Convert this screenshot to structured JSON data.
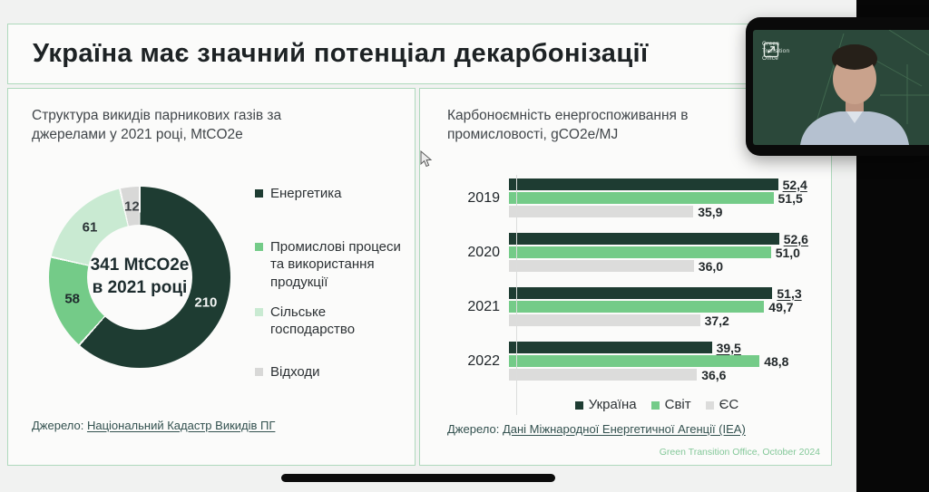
{
  "slide": {
    "title": "Україна має значний потенціал декарбонізації",
    "footer_credit": "Green Transition Office, October 2024"
  },
  "donut_panel": {
    "title": "Структура викидів парникових газів за джерелами у 2021 році, MtCO2e",
    "source_prefix": "Джерело:",
    "source_link": "Національний Кадастр Викидів ПГ"
  },
  "bars_panel": {
    "title": "Карбоноємність енергоспоживання в промисловості, gCO2e/MJ",
    "source_prefix": "Джерело:",
    "source_link": "Дані Міжнародної Енергетичної Агенції (IEA)"
  },
  "webcam": {
    "logo_lines": [
      "Green",
      "Transition",
      "Office"
    ]
  },
  "colors": {
    "dark_green": "#1e3c32",
    "mid_green": "#74cb88",
    "light_green": "#c9ead2",
    "gray": "#d8d8d7",
    "panel_border": "#aed9bc",
    "credit_green": "#84c899"
  },
  "chart_data": [
    {
      "type": "pie",
      "title": "Структура викидів парникових газів за джерелами у 2021 році, MtCO2e",
      "total": 341,
      "center_line1": "341 MtCO2e",
      "center_line2": "в 2021 році",
      "segments": [
        {
          "id": "energy",
          "label": "Енергетика",
          "value": 210,
          "color": "#1e3c32",
          "value_color": "#f3f5f4"
        },
        {
          "id": "industry",
          "label": "Промислові процеси та використання продукції",
          "value": 58,
          "color": "#74cb88",
          "value_color": "#1f2b2d"
        },
        {
          "id": "agriculture",
          "label": "Сільське господарство",
          "value": 61,
          "color": "#c9ead2",
          "value_color": "#2a3336"
        },
        {
          "id": "waste",
          "label": "Відходи",
          "value": 12,
          "color": "#d8d8d7",
          "value_color": "#3c4144"
        }
      ]
    },
    {
      "type": "bar",
      "orientation": "horizontal",
      "title": "Карбоноємність енергоспоживання в промисловості, gCO2e/MJ",
      "categories": [
        "2019",
        "2020",
        "2021",
        "2022"
      ],
      "series": [
        {
          "id": "ukraine",
          "name": "Україна",
          "color": "#1e3c32",
          "underline_values": true,
          "values": [
            52.4,
            52.6,
            51.3,
            39.5
          ]
        },
        {
          "id": "world",
          "name": "Світ",
          "color": "#74cb88",
          "underline_values": false,
          "values": [
            51.5,
            51.0,
            49.7,
            48.8
          ]
        },
        {
          "id": "eu",
          "name": "ЄС",
          "color": "#dcdcdb",
          "underline_values": false,
          "values": [
            35.9,
            36.0,
            37.2,
            36.6
          ]
        }
      ],
      "value_format": "comma-decimal",
      "xlim": [
        0,
        53
      ],
      "grid": false,
      "legend_position": "bottom"
    }
  ]
}
